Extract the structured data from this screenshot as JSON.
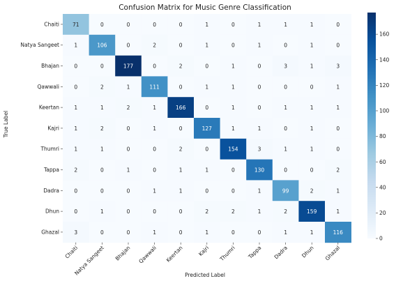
{
  "chart_data": {
    "type": "heatmap",
    "title": "Confusion Matrix for Music Genre Classification",
    "xlabel": "Predicted Label",
    "ylabel": "True Label",
    "labels": [
      "Chaiti",
      "Natya Sangeet",
      "Bhajan",
      "Qawwali",
      "Keertan",
      "Kajri",
      "Thumri",
      "Tappa",
      "Dadra",
      "Dhun",
      "Ghazal"
    ],
    "matrix": [
      [
        71,
        0,
        0,
        0,
        0,
        1,
        0,
        1,
        1,
        1,
        0
      ],
      [
        1,
        106,
        0,
        2,
        0,
        1,
        0,
        1,
        0,
        1,
        0
      ],
      [
        0,
        0,
        177,
        0,
        2,
        0,
        1,
        0,
        3,
        1,
        3
      ],
      [
        0,
        2,
        1,
        111,
        0,
        1,
        1,
        0,
        0,
        0,
        1
      ],
      [
        1,
        1,
        2,
        1,
        166,
        0,
        1,
        0,
        1,
        1,
        1
      ],
      [
        1,
        2,
        0,
        1,
        0,
        127,
        1,
        1,
        0,
        1,
        0
      ],
      [
        1,
        1,
        0,
        0,
        2,
        0,
        154,
        3,
        1,
        1,
        0
      ],
      [
        2,
        0,
        1,
        0,
        1,
        1,
        0,
        130,
        0,
        0,
        2
      ],
      [
        0,
        0,
        0,
        1,
        1,
        0,
        0,
        1,
        99,
        2,
        1
      ],
      [
        0,
        1,
        0,
        0,
        0,
        2,
        2,
        1,
        2,
        159,
        1
      ],
      [
        3,
        0,
        0,
        1,
        0,
        1,
        0,
        0,
        1,
        1,
        116
      ]
    ],
    "colorbar": {
      "min": 0,
      "max": 177,
      "ticks": [
        0,
        20,
        40,
        60,
        80,
        100,
        120,
        140,
        160
      ],
      "colormap": "Blues"
    }
  }
}
